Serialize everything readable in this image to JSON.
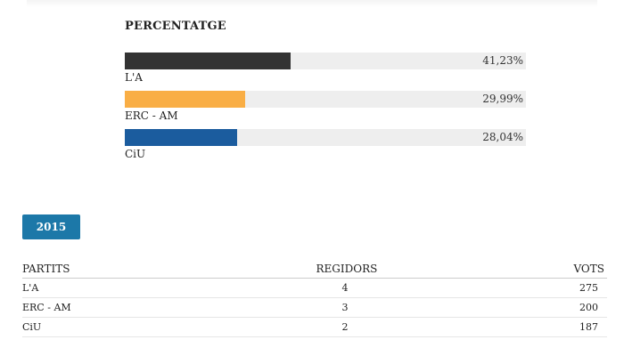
{
  "results": {
    "heading": "PERCENTATGE",
    "bars": [
      {
        "party": "L'A",
        "percent_label": "41,23%",
        "percent": 41.23,
        "color": "#333333"
      },
      {
        "party": "ERC - AM",
        "percent_label": "29,99%",
        "percent": 29.99,
        "color": "#f9ae45"
      },
      {
        "party": "CiU",
        "percent_label": "28,04%",
        "percent": 28.04,
        "color": "#1b5c9e"
      }
    ]
  },
  "year_button": {
    "label": "2015",
    "color": "#1c78a8"
  },
  "table": {
    "headers": [
      "PARTITS",
      "REGIDORS",
      "VOTS"
    ],
    "rows": [
      {
        "party": "L'A",
        "seats": "4",
        "votes": "275"
      },
      {
        "party": "ERC - AM",
        "seats": "3",
        "votes": "200"
      },
      {
        "party": "CiU",
        "seats": "2",
        "votes": "187"
      }
    ]
  }
}
